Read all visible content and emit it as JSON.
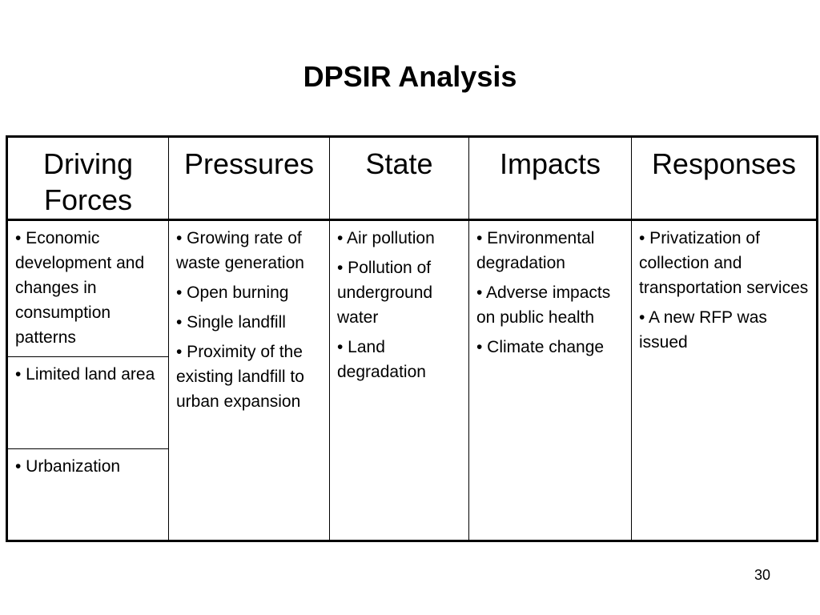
{
  "title": "DPSIR Analysis",
  "table": {
    "headers": {
      "driving_forces_line1": "Driving",
      "driving_forces_line2": "Forces",
      "pressures": "Pressures",
      "state": "State",
      "impacts": "Impacts",
      "responses": "Responses"
    },
    "driving_forces": [
      "• Economic development and changes in consumption patterns",
      "• Limited land area",
      "• Urbanization"
    ],
    "pressures": [
      "• Growing rate of waste generation",
      "• Open burning",
      "• Single landfill",
      "• Proximity of the existing landfill to urban expansion"
    ],
    "state": [
      "• Air pollution",
      "• Pollution of underground water",
      "• Land degradation"
    ],
    "impacts": [
      "• Environmental degradation",
      "• Adverse impacts on public health",
      "• Climate change"
    ],
    "responses": [
      "• Privatization of collection and transportation services",
      "• A new RFP was issued"
    ]
  },
  "page_number": "30"
}
